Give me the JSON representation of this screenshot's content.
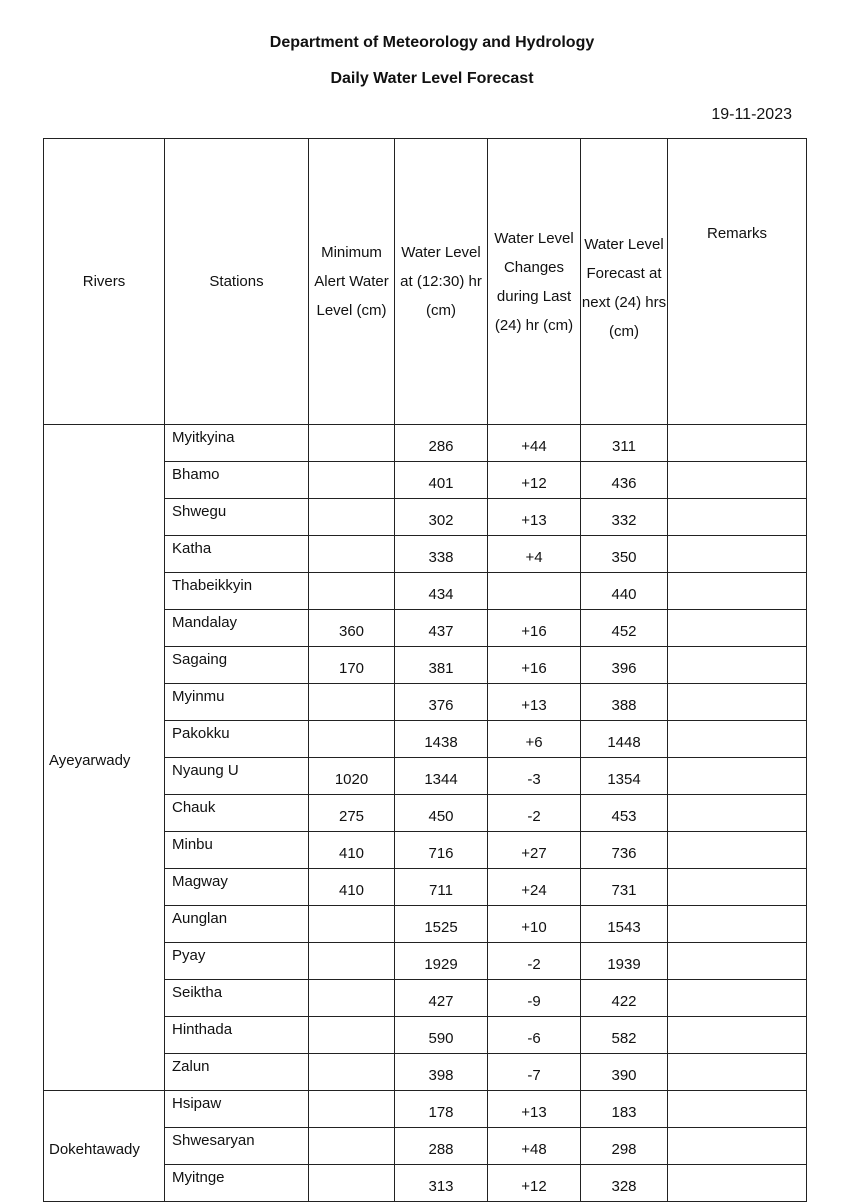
{
  "header": {
    "title": "Department of Meteorology and Hydrology",
    "subtitle": "Daily Water Level Forecast",
    "date": "19-11-2023"
  },
  "table": {
    "columns": [
      "Rivers",
      "Stations",
      "Minimum Alert Water Level (cm)",
      "Water Level at (12:30) hr (cm)",
      "Water Level Changes during Last (24) hr (cm)",
      "Water Level Forecast at next (24) hrs (cm)",
      "Remarks"
    ],
    "groups": [
      {
        "river": "Ayeyarwady",
        "rows": [
          {
            "station": "Myitkyina",
            "alert": "",
            "level": "286",
            "change": "+44",
            "forecast": "311",
            "remarks": ""
          },
          {
            "station": "Bhamo",
            "alert": "",
            "level": "401",
            "change": "+12",
            "forecast": "436",
            "remarks": ""
          },
          {
            "station": "Shwegu",
            "alert": "",
            "level": "302",
            "change": "+13",
            "forecast": "332",
            "remarks": ""
          },
          {
            "station": "Katha",
            "alert": "",
            "level": "338",
            "change": "+4",
            "forecast": "350",
            "remarks": ""
          },
          {
            "station": "Thabeikkyin",
            "alert": "",
            "level": "434",
            "change": "",
            "forecast": "440",
            "remarks": ""
          },
          {
            "station": "Mandalay",
            "alert": "360",
            "level": "437",
            "change": "+16",
            "forecast": "452",
            "remarks": ""
          },
          {
            "station": "Sagaing",
            "alert": "170",
            "level": "381",
            "change": "+16",
            "forecast": "396",
            "remarks": ""
          },
          {
            "station": "Myinmu",
            "alert": "",
            "level": "376",
            "change": "+13",
            "forecast": "388",
            "remarks": ""
          },
          {
            "station": "Pakokku",
            "alert": "",
            "level": "1438",
            "change": "+6",
            "forecast": "1448",
            "remarks": ""
          },
          {
            "station": "Nyaung U",
            "alert": "1020",
            "level": "1344",
            "change": "-3",
            "forecast": "1354",
            "remarks": ""
          },
          {
            "station": "Chauk",
            "alert": "275",
            "level": "450",
            "change": "-2",
            "forecast": "453",
            "remarks": ""
          },
          {
            "station": "Minbu",
            "alert": "410",
            "level": "716",
            "change": "+27",
            "forecast": "736",
            "remarks": ""
          },
          {
            "station": "Magway",
            "alert": "410",
            "level": "711",
            "change": "+24",
            "forecast": "731",
            "remarks": ""
          },
          {
            "station": "Aunglan",
            "alert": "",
            "level": "1525",
            "change": "+10",
            "forecast": "1543",
            "remarks": ""
          },
          {
            "station": "Pyay",
            "alert": "",
            "level": "1929",
            "change": "-2",
            "forecast": "1939",
            "remarks": ""
          },
          {
            "station": "Seiktha",
            "alert": "",
            "level": "427",
            "change": "-9",
            "forecast": "422",
            "remarks": ""
          },
          {
            "station": "Hinthada",
            "alert": "",
            "level": "590",
            "change": "-6",
            "forecast": "582",
            "remarks": ""
          },
          {
            "station": "Zalun",
            "alert": "",
            "level": "398",
            "change": "-7",
            "forecast": "390",
            "remarks": ""
          }
        ]
      },
      {
        "river": "Dokehtawady",
        "rows": [
          {
            "station": "Hsipaw",
            "alert": "",
            "level": "178",
            "change": "+13",
            "forecast": "183",
            "remarks": ""
          },
          {
            "station": "Shwesaryan",
            "alert": "",
            "level": "288",
            "change": "+48",
            "forecast": "298",
            "remarks": ""
          },
          {
            "station": "Myitnge",
            "alert": "",
            "level": "313",
            "change": "+12",
            "forecast": "328",
            "remarks": ""
          }
        ]
      }
    ]
  }
}
